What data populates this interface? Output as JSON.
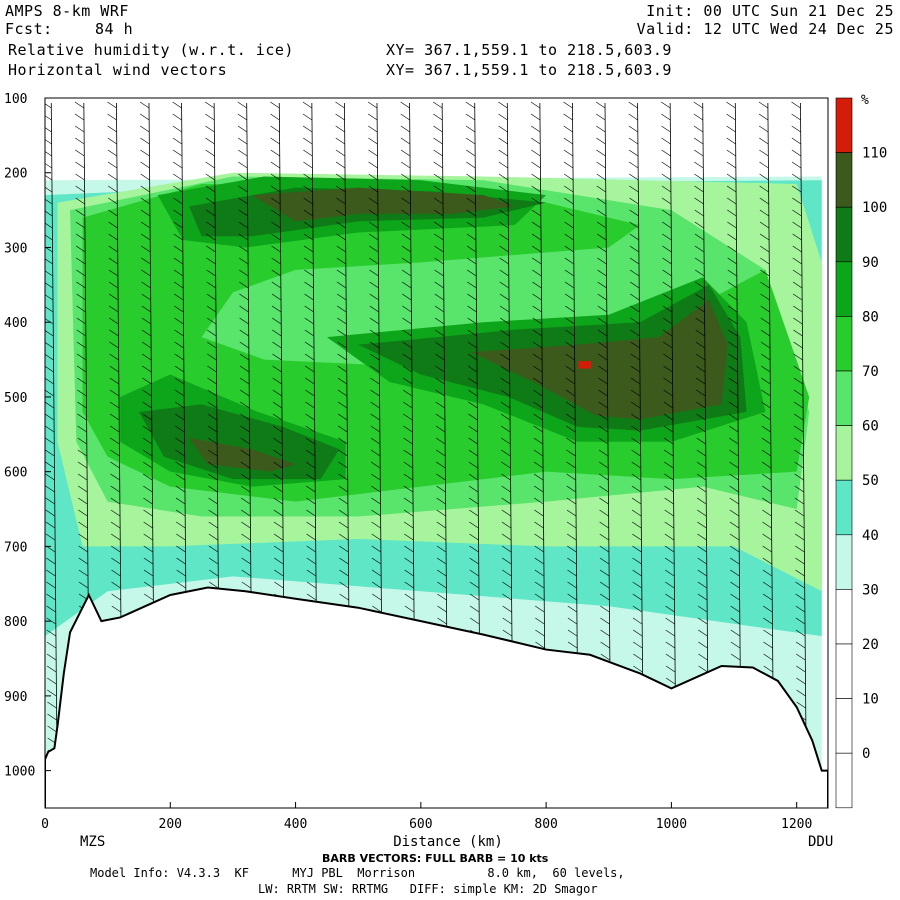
{
  "header": {
    "model": "AMPS 8-km WRF",
    "fcst_label": "Fcst:",
    "fcst_value": "84 h",
    "field": "Relative humidity (w.r.t. ice)",
    "vectors": "Horizontal wind vectors",
    "init": "Init: 00 UTC Sun 21 Dec 25",
    "valid": "Valid: 12 UTC Wed 24 Dec 25",
    "xy1": "XY= 367.1,559.1 to 218.5,603.9",
    "xy2": "XY= 367.1,559.1 to 218.5,603.9"
  },
  "footer": {
    "start_station": "MZS",
    "end_station": "DDU",
    "barb_note": "BARB VECTORS: FULL BARB = 10 kts",
    "model_info": "Model Info: V4.3.3  KF      MYJ PBL  Morrison          8.0 km,  60 levels,",
    "physics": "LW: RRTM SW: RRTMG   DIFF: simple KM: 2D Smagor"
  },
  "colors": {
    "c_lt30": "#ffffff",
    "c_30_40": "#c6f8ea",
    "c_40_50": "#5ee6c6",
    "c_50_60": "#a6f59d",
    "c_60_70": "#59e46b",
    "c_70_80": "#28cc2c",
    "c_80_90": "#0da51a",
    "c_90_100": "#0f7b16",
    "c_100_110": "#3c5a1c",
    "c_gt110": "#d51c08"
  },
  "chart_data": {
    "type": "heatmap",
    "title": "Relative humidity (w.r.t. ice)",
    "xlabel": "Distance (km)",
    "ylabel": "",
    "xlim": [
      0,
      1250
    ],
    "ylim": [
      1050,
      100
    ],
    "x_ticks": [
      0,
      200,
      400,
      600,
      800,
      1000,
      1200
    ],
    "y_ticks": [
      100,
      200,
      300,
      400,
      500,
      600,
      700,
      800,
      900,
      1000
    ],
    "colorbar": {
      "unit": "%",
      "labels": [
        110,
        100,
        90,
        80,
        70,
        60,
        50,
        40,
        30,
        20,
        10,
        0
      ]
    },
    "rh_regions": [
      {
        "range": "100-110",
        "approx": [
          [
            230,
            250,
            320,
            300
          ],
          [
            700,
            400,
            1060,
            540
          ],
          [
            210,
            540,
            430,
            590
          ]
        ]
      },
      {
        "range": ">110",
        "approx": [
          [
            852,
            455,
            870,
            460
          ]
        ]
      }
    ],
    "terrain": [
      [
        0,
        985
      ],
      [
        5,
        975
      ],
      [
        15,
        970
      ],
      [
        20,
        940
      ],
      [
        30,
        870
      ],
      [
        40,
        815
      ],
      [
        55,
        790
      ],
      [
        70,
        765
      ],
      [
        90,
        800
      ],
      [
        120,
        795
      ],
      [
        160,
        780
      ],
      [
        200,
        765
      ],
      [
        260,
        755
      ],
      [
        320,
        760
      ],
      [
        400,
        770
      ],
      [
        500,
        782
      ],
      [
        600,
        800
      ],
      [
        700,
        818
      ],
      [
        800,
        838
      ],
      [
        870,
        845
      ],
      [
        950,
        870
      ],
      [
        1000,
        890
      ],
      [
        1040,
        875
      ],
      [
        1080,
        860
      ],
      [
        1130,
        862
      ],
      [
        1170,
        880
      ],
      [
        1200,
        915
      ],
      [
        1225,
        960
      ],
      [
        1240,
        1000
      ]
    ]
  }
}
